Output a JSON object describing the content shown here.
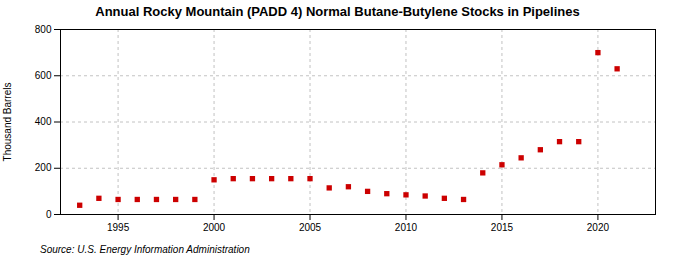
{
  "chart_data": {
    "type": "scatter",
    "title": "Annual Rocky Mountain (PADD 4) Normal Butane-Butylene Stocks in Pipelines",
    "ylabel": "Thousand Barrels",
    "source": "Source: U.S. Energy Information Administration",
    "x": [
      1993,
      1994,
      1995,
      1996,
      1997,
      1998,
      1999,
      2000,
      2001,
      2002,
      2003,
      2004,
      2005,
      2006,
      2007,
      2008,
      2009,
      2010,
      2011,
      2012,
      2013,
      2014,
      2015,
      2016,
      2017,
      2018,
      2019,
      2020,
      2021
    ],
    "values": [
      40,
      70,
      65,
      65,
      65,
      65,
      65,
      150,
      155,
      155,
      155,
      155,
      155,
      115,
      120,
      100,
      90,
      85,
      80,
      70,
      65,
      180,
      215,
      245,
      280,
      315,
      315,
      700,
      630
    ],
    "color": "#cc0000",
    "marker": "square",
    "xlim": [
      1992,
      2023
    ],
    "xticks": [
      1995,
      2000,
      2005,
      2010,
      2015,
      2020
    ],
    "ylim": [
      0,
      800
    ],
    "yticks": [
      0,
      200,
      400,
      600,
      800
    ],
    "grid": true
  }
}
